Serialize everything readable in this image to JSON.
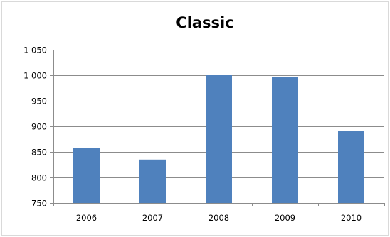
{
  "chart_data": {
    "type": "bar",
    "title": "Classic",
    "categories": [
      "2006",
      "2007",
      "2008",
      "2009",
      "2010"
    ],
    "values": [
      857,
      835,
      1000,
      997,
      891
    ],
    "ylim": [
      750,
      1050
    ],
    "yticks": [
      750,
      800,
      850,
      900,
      950,
      1000,
      1050
    ],
    "ytick_labels": [
      "750",
      "800",
      "850",
      "900",
      "950",
      "1 000",
      "1 050"
    ],
    "xlabel": "",
    "ylabel": "",
    "grid": true,
    "legend": "none",
    "bar_color": "#4f81bd",
    "grid_color": "#8c8c8c"
  }
}
